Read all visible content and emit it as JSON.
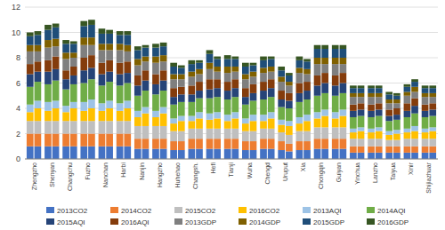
{
  "chart_data": {
    "type": "bar",
    "stacked": true,
    "grid": true,
    "legend": "bottom",
    "categories": [
      "Zhengzho",
      "Shenyan",
      "Changchu",
      "Fuzho",
      "Nanchan",
      "Harbi",
      "Nanjin",
      "Hangzho",
      "Huhehao",
      "Changsh.",
      "Hefi",
      "Tianji",
      "Wuha",
      "Chengd",
      "Uruput",
      "Xia",
      "Chongqin",
      "Guiyan",
      "Yinchua",
      "Lanzho",
      "Taiyua",
      "Xinir",
      "Shijiazhuar"
    ],
    "ylim": [
      0,
      12
    ],
    "yticks": [
      0,
      2,
      4,
      6,
      8,
      10,
      12
    ],
    "series": [
      {
        "name": "2013CO2",
        "color": "#4472C4",
        "values": [
          [
            1.0,
            1.0
          ],
          [
            1.0,
            1.0
          ],
          [
            1.0,
            1.0
          ],
          [
            1.0,
            1.0
          ],
          [
            1.0,
            1.0
          ],
          [
            1.0,
            1.0
          ],
          [
            0.8,
            0.8
          ],
          [
            0.8,
            0.8
          ],
          [
            0.7,
            0.7
          ],
          [
            0.8,
            0.8
          ],
          [
            0.8,
            0.8
          ],
          [
            0.8,
            0.8
          ],
          [
            0.7,
            0.7
          ],
          [
            0.8,
            0.8
          ],
          [
            0.7,
            0.6
          ],
          [
            0.7,
            0.7
          ],
          [
            0.8,
            0.8
          ],
          [
            0.8,
            0.8
          ],
          [
            0.5,
            0.5
          ],
          [
            0.5,
            0.5
          ],
          [
            0.5,
            0.5
          ],
          [
            0.5,
            0.5
          ],
          [
            0.5,
            0.5
          ]
        ]
      },
      {
        "name": "2014CO2",
        "color": "#ED7D31",
        "values": [
          [
            1.0,
            1.0
          ],
          [
            1.0,
            1.0
          ],
          [
            1.0,
            1.0
          ],
          [
            1.0,
            1.0
          ],
          [
            1.0,
            1.0
          ],
          [
            1.0,
            1.0
          ],
          [
            0.8,
            0.8
          ],
          [
            0.8,
            0.8
          ],
          [
            0.7,
            0.7
          ],
          [
            0.8,
            0.8
          ],
          [
            0.8,
            0.8
          ],
          [
            0.8,
            0.8
          ],
          [
            0.7,
            0.7
          ],
          [
            0.8,
            0.8
          ],
          [
            0.7,
            0.6
          ],
          [
            0.7,
            0.7
          ],
          [
            0.8,
            0.8
          ],
          [
            0.8,
            0.8
          ],
          [
            0.5,
            0.5
          ],
          [
            0.5,
            0.5
          ],
          [
            0.5,
            0.5
          ],
          [
            0.5,
            0.5
          ],
          [
            0.5,
            0.5
          ]
        ]
      },
      {
        "name": "2015CO2",
        "color": "#BFBFBF",
        "values": [
          [
            1.0,
            1.0
          ],
          [
            1.0,
            1.0
          ],
          [
            1.0,
            1.0
          ],
          [
            1.0,
            1.0
          ],
          [
            1.0,
            1.0
          ],
          [
            1.0,
            1.0
          ],
          [
            1.0,
            1.0
          ],
          [
            1.0,
            1.0
          ],
          [
            0.8,
            0.8
          ],
          [
            0.8,
            0.8
          ],
          [
            0.8,
            0.8
          ],
          [
            0.8,
            0.8
          ],
          [
            0.8,
            0.8
          ],
          [
            0.8,
            0.8
          ],
          [
            0.7,
            0.7
          ],
          [
            0.8,
            0.8
          ],
          [
            0.9,
            0.9
          ],
          [
            0.9,
            0.9
          ],
          [
            0.6,
            0.6
          ],
          [
            0.6,
            0.6
          ],
          [
            0.5,
            0.5
          ],
          [
            0.6,
            0.6
          ],
          [
            0.6,
            0.6
          ]
        ]
      },
      {
        "name": "2016CO2",
        "color": "#FFC000",
        "values": [
          [
            0.7,
            1.0
          ],
          [
            0.8,
            1.0
          ],
          [
            0.7,
            1.0
          ],
          [
            0.8,
            1.0
          ],
          [
            0.8,
            1.0
          ],
          [
            0.8,
            1.0
          ],
          [
            0.7,
            1.0
          ],
          [
            0.7,
            1.0
          ],
          [
            0.6,
            0.8
          ],
          [
            0.6,
            0.8
          ],
          [
            0.7,
            0.8
          ],
          [
            0.6,
            0.8
          ],
          [
            0.6,
            0.8
          ],
          [
            0.6,
            0.8
          ],
          [
            0.6,
            0.7
          ],
          [
            0.6,
            0.8
          ],
          [
            0.7,
            0.9
          ],
          [
            0.7,
            0.9
          ],
          [
            0.5,
            0.6
          ],
          [
            0.5,
            0.6
          ],
          [
            0.4,
            0.5
          ],
          [
            0.5,
            0.6
          ],
          [
            0.5,
            0.6
          ]
        ]
      },
      {
        "name": "2013AQI",
        "color": "#9DC3E6",
        "values": [
          [
            0.6,
            0.6
          ],
          [
            0.7,
            0.6
          ],
          [
            0.5,
            0.5
          ],
          [
            0.7,
            0.7
          ],
          [
            0.6,
            0.6
          ],
          [
            0.6,
            0.6
          ],
          [
            0.5,
            0.5
          ],
          [
            0.5,
            0.5
          ],
          [
            0.4,
            0.4
          ],
          [
            0.4,
            0.5
          ],
          [
            0.5,
            0.5
          ],
          [
            0.5,
            0.5
          ],
          [
            0.4,
            0.5
          ],
          [
            0.5,
            0.5
          ],
          [
            0.4,
            0.4
          ],
          [
            0.5,
            0.5
          ],
          [
            0.5,
            0.5
          ],
          [
            0.5,
            0.5
          ],
          [
            0.3,
            0.3
          ],
          [
            0.3,
            0.3
          ],
          [
            0.3,
            0.3
          ],
          [
            0.3,
            0.4
          ],
          [
            0.3,
            0.3
          ]
        ]
      },
      {
        "name": "2014AQI",
        "color": "#70AD47",
        "values": [
          [
            1.4,
            1.5
          ],
          [
            1.4,
            1.6
          ],
          [
            1.3,
            1.4
          ],
          [
            1.5,
            1.6
          ],
          [
            1.4,
            1.5
          ],
          [
            1.4,
            1.4
          ],
          [
            1.2,
            1.3
          ],
          [
            1.3,
            1.3
          ],
          [
            1.1,
            1.1
          ],
          [
            1.1,
            1.1
          ],
          [
            1.2,
            1.2
          ],
          [
            1.2,
            1.2
          ],
          [
            1.1,
            1.1
          ],
          [
            1.2,
            1.2
          ],
          [
            1.0,
            1.0
          ],
          [
            1.2,
            1.2
          ],
          [
            1.3,
            1.3
          ],
          [
            1.3,
            1.3
          ],
          [
            0.9,
            0.9
          ],
          [
            0.9,
            0.9
          ],
          [
            0.8,
            0.8
          ],
          [
            0.9,
            1.0
          ],
          [
            0.9,
            0.9
          ]
        ]
      },
      {
        "name": "2015AQI",
        "color": "#264478",
        "values": [
          [
            1.0,
            0.8
          ],
          [
            1.0,
            0.9
          ],
          [
            0.8,
            0.7
          ],
          [
            1.0,
            0.9
          ],
          [
            0.9,
            0.8
          ],
          [
            0.9,
            0.8
          ],
          [
            0.8,
            0.8
          ],
          [
            0.8,
            0.8
          ],
          [
            0.6,
            0.6
          ],
          [
            0.6,
            0.6
          ],
          [
            0.7,
            0.7
          ],
          [
            0.7,
            0.7
          ],
          [
            0.6,
            0.6
          ],
          [
            0.7,
            0.7
          ],
          [
            0.6,
            0.6
          ],
          [
            0.7,
            0.7
          ],
          [
            0.8,
            0.8
          ],
          [
            0.8,
            0.8
          ],
          [
            0.5,
            0.5
          ],
          [
            0.5,
            0.5
          ],
          [
            0.4,
            0.4
          ],
          [
            0.5,
            0.6
          ],
          [
            0.5,
            0.5
          ]
        ]
      },
      {
        "name": "2016AQI",
        "color": "#843C0C",
        "values": [
          [
            0.8,
            0.8
          ],
          [
            0.9,
            1.0
          ],
          [
            0.7,
            0.7
          ],
          [
            1.0,
            1.0
          ],
          [
            0.9,
            0.9
          ],
          [
            0.9,
            0.9
          ],
          [
            0.8,
            0.8
          ],
          [
            0.8,
            0.8
          ],
          [
            0.7,
            0.6
          ],
          [
            0.7,
            0.7
          ],
          [
            0.8,
            0.7
          ],
          [
            0.7,
            0.7
          ],
          [
            0.7,
            0.7
          ],
          [
            0.7,
            0.7
          ],
          [
            0.7,
            0.6
          ],
          [
            0.8,
            0.7
          ],
          [
            0.8,
            0.8
          ],
          [
            0.8,
            0.8
          ],
          [
            0.5,
            0.5
          ],
          [
            0.5,
            0.5
          ],
          [
            0.5,
            0.5
          ],
          [
            0.6,
            0.6
          ],
          [
            0.5,
            0.5
          ]
        ]
      },
      {
        "name": "2013GDP",
        "color": "#7F7F7F",
        "values": [
          [
            1.0,
            0.8
          ],
          [
            1.0,
            0.8
          ],
          [
            0.9,
            0.7
          ],
          [
            1.0,
            0.8
          ],
          [
            1.0,
            0.8
          ],
          [
            1.0,
            0.8
          ],
          [
            0.8,
            0.7
          ],
          [
            0.9,
            0.7
          ],
          [
            0.7,
            0.6
          ],
          [
            0.7,
            0.6
          ],
          [
            0.8,
            0.6
          ],
          [
            0.7,
            0.6
          ],
          [
            0.7,
            0.6
          ],
          [
            0.7,
            0.6
          ],
          [
            0.7,
            0.6
          ],
          [
            0.8,
            0.6
          ],
          [
            0.9,
            0.7
          ],
          [
            0.9,
            0.7
          ],
          [
            0.6,
            0.5
          ],
          [
            0.6,
            0.5
          ],
          [
            0.5,
            0.4
          ],
          [
            0.6,
            0.5
          ],
          [
            0.6,
            0.5
          ]
        ]
      },
      {
        "name": "2014GDP",
        "color": "#7F6000",
        "values": [
          [
            0.5,
            0.5
          ],
          [
            0.6,
            0.6
          ],
          [
            0.5,
            0.4
          ],
          [
            0.6,
            0.6
          ],
          [
            0.5,
            0.5
          ],
          [
            0.5,
            0.5
          ],
          [
            0.5,
            0.4
          ],
          [
            0.5,
            0.5
          ],
          [
            0.4,
            0.4
          ],
          [
            0.4,
            0.4
          ],
          [
            0.5,
            0.4
          ],
          [
            0.5,
            0.4
          ],
          [
            0.4,
            0.4
          ],
          [
            0.4,
            0.4
          ],
          [
            0.4,
            0.3
          ],
          [
            0.4,
            0.4
          ],
          [
            0.5,
            0.5
          ],
          [
            0.5,
            0.5
          ],
          [
            0.3,
            0.3
          ],
          [
            0.3,
            0.3
          ],
          [
            0.3,
            0.3
          ],
          [
            0.3,
            0.4
          ],
          [
            0.3,
            0.3
          ]
        ]
      },
      {
        "name": "2015GDP",
        "color": "#1F4E79",
        "values": [
          [
            0.7,
            0.8
          ],
          [
            0.8,
            0.9
          ],
          [
            0.7,
            0.7
          ],
          [
            0.9,
            1.0
          ],
          [
            0.8,
            0.8
          ],
          [
            0.7,
            0.8
          ],
          [
            0.7,
            0.7
          ],
          [
            0.7,
            0.7
          ],
          [
            0.6,
            0.5
          ],
          [
            0.6,
            0.5
          ],
          [
            0.7,
            0.6
          ],
          [
            0.6,
            0.6
          ],
          [
            0.6,
            0.5
          ],
          [
            0.6,
            0.6
          ],
          [
            0.5,
            0.5
          ],
          [
            0.6,
            0.6
          ],
          [
            0.7,
            0.7
          ],
          [
            0.7,
            0.7
          ],
          [
            0.4,
            0.4
          ],
          [
            0.4,
            0.4
          ],
          [
            0.4,
            0.3
          ],
          [
            0.4,
            0.4
          ],
          [
            0.4,
            0.4
          ]
        ]
      },
      {
        "name": "2016GDP",
        "color": "#375623",
        "values": [
          [
            0.3,
            0.3
          ],
          [
            0.4,
            0.3
          ],
          [
            0.3,
            0.2
          ],
          [
            0.4,
            0.4
          ],
          [
            0.4,
            0.3
          ],
          [
            0.3,
            0.3
          ],
          [
            0.3,
            0.2
          ],
          [
            0.3,
            0.3
          ],
          [
            0.3,
            0.2
          ],
          [
            0.3,
            0.2
          ],
          [
            0.3,
            0.2
          ],
          [
            0.3,
            0.2
          ],
          [
            0.3,
            0.2
          ],
          [
            0.3,
            0.2
          ],
          [
            0.3,
            0.2
          ],
          [
            0.3,
            0.2
          ],
          [
            0.3,
            0.3
          ],
          [
            0.3,
            0.3
          ],
          [
            0.2,
            0.2
          ],
          [
            0.2,
            0.2
          ],
          [
            0.2,
            0.2
          ],
          [
            0.2,
            0.2
          ],
          [
            0.2,
            0.2
          ]
        ]
      }
    ]
  }
}
